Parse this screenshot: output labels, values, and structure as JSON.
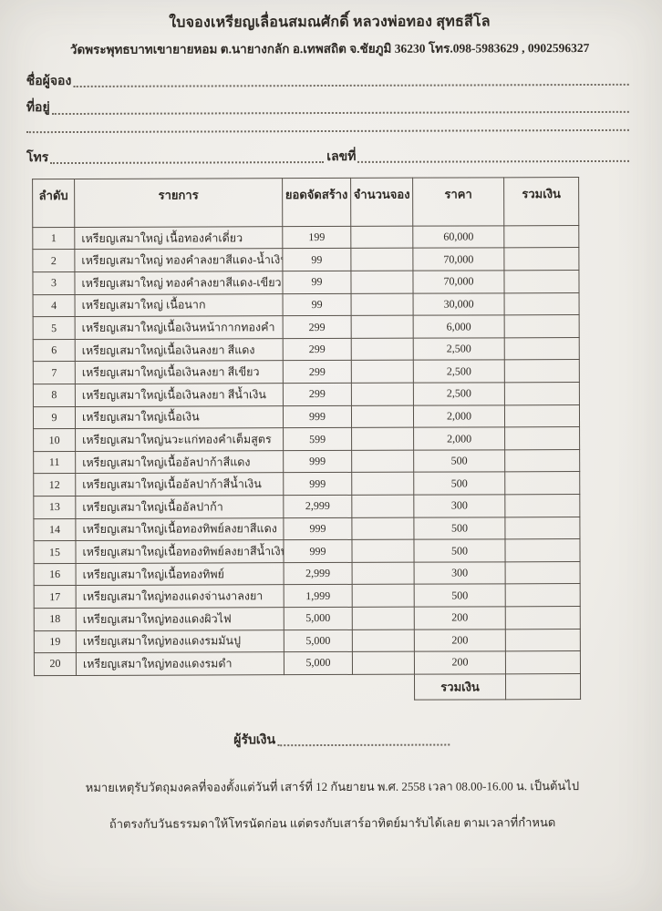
{
  "header": {
    "title": "ใบจองเหรียญเลื่อนสมณศักดิ์ หลวงพ่อทอง สุทธสีโล",
    "subtitle": "วัดพระพุทธบาทเขายายหอม ต.นายางกลัก อ.เทพสถิต จ.ชัยภูมิ 36230  โทร.098-5983629 , 0902596327"
  },
  "form": {
    "name_label": "ชื่อผู้จอง",
    "address_label": "ที่อยู่",
    "phone_label": "โทร",
    "number_label": "เลขที่"
  },
  "table": {
    "headers": [
      "ลำดับ",
      "รายการ",
      "ยอดจัดสร้าง",
      "จำนวนจอง",
      "ราคา",
      "รวมเงิน"
    ],
    "rows": [
      {
        "no": "1",
        "item": "เหรียญเสมาใหญ่ เนื้อทองคำเดี่ยว",
        "made": "199",
        "qty": "",
        "price": "60,000",
        "total": ""
      },
      {
        "no": "2",
        "item": "เหรียญเสมาใหญ่ ทองคำลงยาสีแดง-น้ำเงิน",
        "made": "99",
        "qty": "",
        "price": "70,000",
        "total": ""
      },
      {
        "no": "3",
        "item": "เหรียญเสมาใหญ่ ทองคำลงยาสีแดง-เขียว",
        "made": "99",
        "qty": "",
        "price": "70,000",
        "total": ""
      },
      {
        "no": "4",
        "item": "เหรียญเสมาใหญ่ เนื้อนาก",
        "made": "99",
        "qty": "",
        "price": "30,000",
        "total": ""
      },
      {
        "no": "5",
        "item": "เหรียญเสมาใหญ่เนื้อเงินหน้ากากทองคำ",
        "made": "299",
        "qty": "",
        "price": "6,000",
        "total": ""
      },
      {
        "no": "6",
        "item": "เหรียญเสมาใหญ่เนื้อเงินลงยา สีแดง",
        "made": "299",
        "qty": "",
        "price": "2,500",
        "total": ""
      },
      {
        "no": "7",
        "item": "เหรียญเสมาใหญ่เนื้อเงินลงยา สีเขียว",
        "made": "299",
        "qty": "",
        "price": "2,500",
        "total": ""
      },
      {
        "no": "8",
        "item": "เหรียญเสมาใหญ่เนื้อเงินลงยา สีน้ำเงิน",
        "made": "299",
        "qty": "",
        "price": "2,500",
        "total": ""
      },
      {
        "no": "9",
        "item": "เหรียญเสมาใหญ่เนื้อเงิน",
        "made": "999",
        "qty": "",
        "price": "2,000",
        "total": ""
      },
      {
        "no": "10",
        "item": "เหรียญเสมาใหญ่นวะแก่ทองคำเต็มสูตร",
        "made": "599",
        "qty": "",
        "price": "2,000",
        "total": ""
      },
      {
        "no": "11",
        "item": "เหรียญเสมาใหญ่เนื้ออัลปาก้าสีแดง",
        "made": "999",
        "qty": "",
        "price": "500",
        "total": ""
      },
      {
        "no": "12",
        "item": "เหรียญเสมาใหญ่เนื้ออัลปาก้าสีน้ำเงิน",
        "made": "999",
        "qty": "",
        "price": "500",
        "total": ""
      },
      {
        "no": "13",
        "item": "เหรียญเสมาใหญ่เนื้ออัลปาก้า",
        "made": "2,999",
        "qty": "",
        "price": "300",
        "total": ""
      },
      {
        "no": "14",
        "item": "เหรียญเสมาใหญ่เนื้อทองทิพย์ลงยาสีแดง",
        "made": "999",
        "qty": "",
        "price": "500",
        "total": ""
      },
      {
        "no": "15",
        "item": "เหรียญเสมาใหญ่เนื้อทองทิพย์ลงยาสีน้ำเงิน",
        "made": "999",
        "qty": "",
        "price": "500",
        "total": ""
      },
      {
        "no": "16",
        "item": "เหรียญเสมาใหญ่เนื้อทองทิพย์",
        "made": "2,999",
        "qty": "",
        "price": "300",
        "total": ""
      },
      {
        "no": "17",
        "item": "เหรียญเสมาใหญ่ทองแดงจ่านงาลงยา",
        "made": "1,999",
        "qty": "",
        "price": "500",
        "total": ""
      },
      {
        "no": "18",
        "item": "เหรียญเสมาใหญ่ทองแดงผิวไฟ",
        "made": "5,000",
        "qty": "",
        "price": "200",
        "total": ""
      },
      {
        "no": "19",
        "item": "เหรียญเสมาใหญ่ทองแดงรมมันปู",
        "made": "5,000",
        "qty": "",
        "price": "200",
        "total": ""
      },
      {
        "no": "20",
        "item": "เหรียญเสมาใหญ่ทองแดงรมดำ",
        "made": "5,000",
        "qty": "",
        "price": "200",
        "total": ""
      }
    ],
    "footer": {
      "label": "รวมเงิน",
      "value": ""
    }
  },
  "footer": {
    "receiver_label": "ผู้รับเงิน",
    "note1": "หมายเหตุรับวัตถุมงคลที่จองตั้งแต่วันที่ เสาร์ที่ 12 กันยายน พ.ศ. 2558  เวลา 08.00-16.00 น. เป็นต้นไป",
    "note2": "ถ้าตรงกับวันธรรมดาให้โทรนัดก่อน แต่ตรงกับเสาร์อาทิตย์มารับได้เลย ตามเวลาที่กำหนด"
  },
  "colors": {
    "paper": "#f0eeea",
    "ink": "#2e2a25",
    "table_border": "#57514a"
  }
}
